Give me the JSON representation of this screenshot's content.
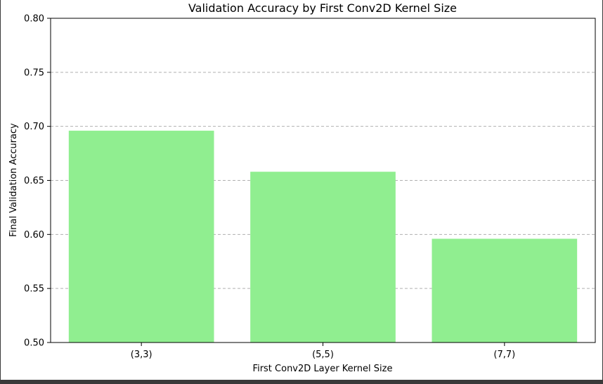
{
  "chart_data": {
    "type": "bar",
    "title": "Validation Accuracy by First Conv2D Kernel Size",
    "xlabel": "First Conv2D Layer Kernel Size",
    "ylabel": "Final Validation Accuracy",
    "categories": [
      "(3,3)",
      "(5,5)",
      "(7,7)"
    ],
    "values": [
      0.696,
      0.658,
      0.596
    ],
    "ylim": [
      0.5,
      0.8
    ],
    "yticks": [
      "0.50",
      "0.55",
      "0.60",
      "0.65",
      "0.70",
      "0.75",
      "0.80"
    ],
    "grid": "y-dashed",
    "legend": "none",
    "bar_color": "#90ee90",
    "grid_color": "#b0b0b0"
  }
}
